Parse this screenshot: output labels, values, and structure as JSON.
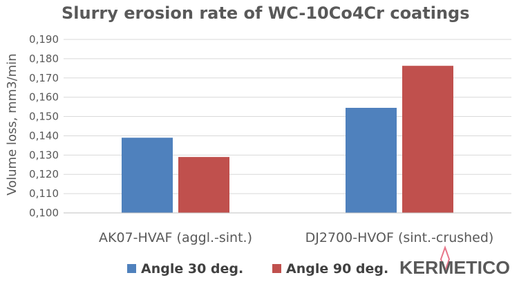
{
  "chart_data": {
    "type": "bar",
    "title": "Slurry erosion rate of WC-10Co4Cr coatings",
    "xlabel": "",
    "ylabel": "Volume loss, mm3/min",
    "categories": [
      "AK07-HVAF (aggl.-sint.)",
      "DJ2700-HVOF (sint.-crushed)"
    ],
    "series": [
      {
        "name": "Angle 30 deg.",
        "values": [
          0.139,
          0.1545
        ],
        "color": "#4F81BD"
      },
      {
        "name": "Angle 90 deg.",
        "values": [
          0.129,
          0.1763
        ],
        "color": "#C0504D"
      }
    ],
    "ylim": [
      0.1,
      0.19
    ],
    "yticks": [
      "0,100",
      "0,110",
      "0,120",
      "0,130",
      "0,140",
      "0,150",
      "0,160",
      "0,170",
      "0,180",
      "0,190"
    ],
    "grid": true,
    "legend_position": "bottom"
  },
  "logo": {
    "text": "KERMETICO",
    "icon": "diamond-flame-icon",
    "color": "#595959",
    "accent": "#E8768A"
  }
}
